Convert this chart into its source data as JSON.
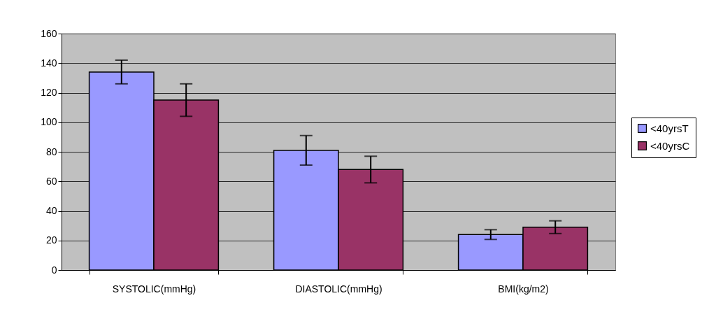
{
  "chart_data": {
    "type": "bar",
    "categories": [
      "SYSTOLIC(mmHg)",
      "DIASTOLIC(mmHg)",
      "BMI(kg/m2)"
    ],
    "series": [
      {
        "name": "<40yrsT",
        "color": "#9999ff",
        "values": [
          134,
          81,
          24
        ],
        "errors": [
          8,
          10,
          3.3
        ]
      },
      {
        "name": "<40yrsC",
        "color": "#993366",
        "values": [
          115,
          68,
          29
        ],
        "errors": [
          11,
          9,
          4.3
        ]
      }
    ],
    "ylim": [
      0,
      160
    ],
    "yticks": [
      0,
      20,
      40,
      60,
      80,
      100,
      120,
      140,
      160
    ],
    "grid": "y",
    "legend": "right"
  }
}
